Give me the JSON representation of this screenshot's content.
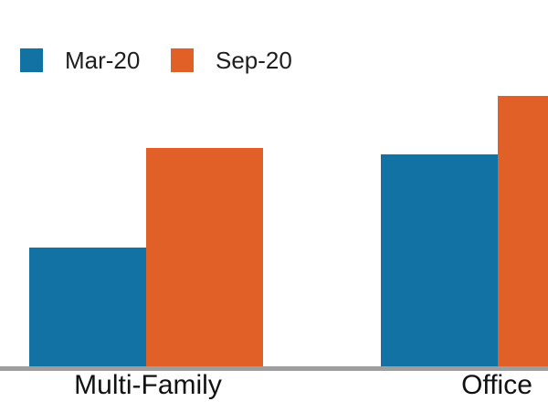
{
  "chart_data": {
    "type": "bar",
    "title": "",
    "categories": [
      "Multi-Family",
      "Office"
    ],
    "series": [
      {
        "name": "Mar-20",
        "color": "#1272a3",
        "values": [
          130,
          232
        ]
      },
      {
        "name": "Sep-20",
        "color": "#e06027",
        "values": [
          239,
          296
        ]
      }
    ],
    "xlabel": "",
    "ylabel": "",
    "ylim": [
      0,
      310
    ],
    "value_units": "relative bar height in pixels; no y-axis, gridlines or value labels are shown",
    "grid": false,
    "legend_position": "top-left",
    "axis_line_color": "#9e9e9e",
    "text_color": "#1e1e1e",
    "background": "#ffffff",
    "notes": "Sep-20 bar of the Office group is clipped by the right edge of the image"
  }
}
